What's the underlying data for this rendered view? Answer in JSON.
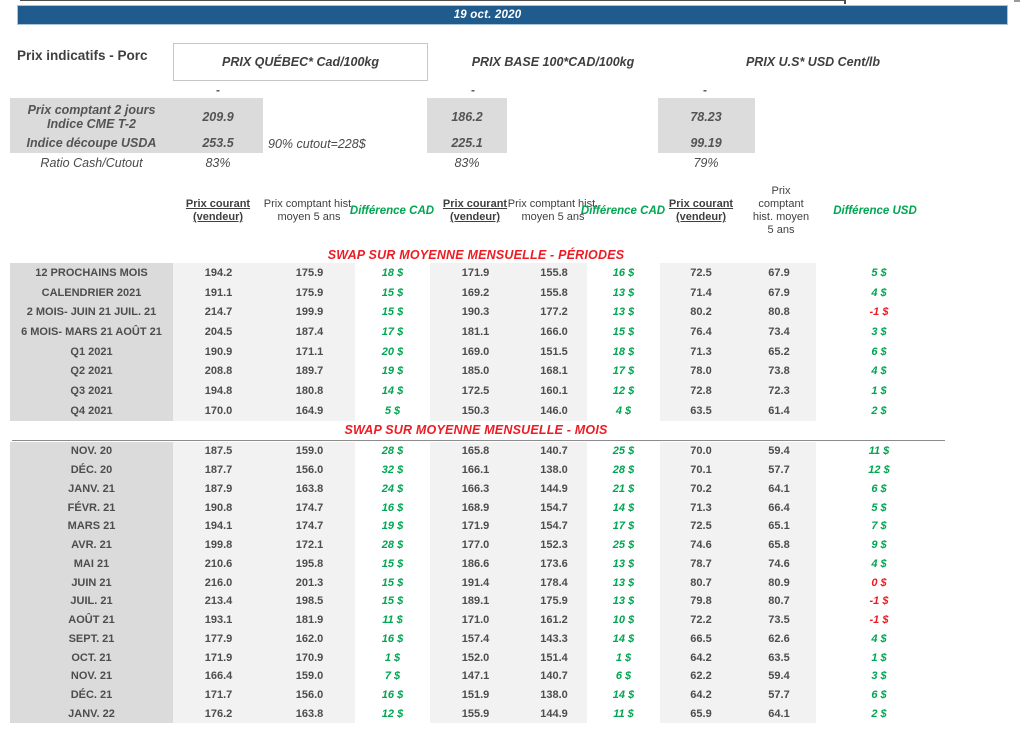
{
  "meta": {
    "date_label": "19 oct. 2020"
  },
  "page": {
    "title": "Prix indicatifs - Porc"
  },
  "groups": [
    {
      "label": "PRIX QUÉBEC* Cad/100kg"
    },
    {
      "label": "PRIX BASE 100*CAD/100kg"
    },
    {
      "label": "PRIX U.S* USD Cent/lb"
    }
  ],
  "spot": {
    "dash": "-",
    "cme": {
      "label_line1": "Prix comptant 2 jours",
      "label_line2": "Indice CME T-2",
      "quebec": "209.9",
      "base": "186.2",
      "us": "78.23"
    },
    "usda": {
      "label": "Indice découpe USDA",
      "quebec": "253.5",
      "note": "90% cutout=228$",
      "base": "225.1",
      "us": "99.19"
    },
    "ratio": {
      "label": "Ratio Cash/Cutout",
      "quebec": "83%",
      "base": "83%",
      "us": "79%"
    }
  },
  "table": {
    "headers": [
      {
        "text": "Prix courant (vendeur)",
        "kind": "courant"
      },
      {
        "text": "Prix comptant hist. moyen 5 ans",
        "kind": "hist"
      },
      {
        "text": "Différence CAD",
        "kind": "diff"
      },
      {
        "text": "Prix courant (vendeur)",
        "kind": "courant"
      },
      {
        "text": "Prix comptant hist. moyen 5 ans",
        "kind": "hist"
      },
      {
        "text": "Différence CAD",
        "kind": "diff"
      },
      {
        "text": "Prix courant (vendeur)",
        "kind": "courant"
      },
      {
        "text": "Prix comptant hist. moyen 5 ans",
        "kind": "hist"
      },
      {
        "text": "Différence USD",
        "kind": "diff"
      }
    ],
    "sections": [
      {
        "title": "SWAP SUR MOYENNE MENSUELLE - PÉRIODES",
        "rows": [
          [
            "12 PROCHAINS MOIS",
            "194.2",
            "175.9",
            "18 $",
            "171.9",
            "155.8",
            "16 $",
            "72.5",
            "67.9",
            "5 $"
          ],
          [
            "CALENDRIER 2021",
            "191.1",
            "175.9",
            "15 $",
            "169.2",
            "155.8",
            "13 $",
            "71.4",
            "67.9",
            "4 $"
          ],
          [
            "2 MOIS- JUIN 21 JUIL. 21",
            "214.7",
            "199.9",
            "15 $",
            "190.3",
            "177.2",
            "13 $",
            "80.2",
            "80.8",
            "-1 $"
          ],
          [
            "6 MOIS- MARS 21 AOÛT 21",
            "204.5",
            "187.4",
            "17 $",
            "181.1",
            "166.0",
            "15 $",
            "76.4",
            "73.4",
            "3 $"
          ],
          [
            "Q1 2021",
            "190.9",
            "171.1",
            "20 $",
            "169.0",
            "151.5",
            "18 $",
            "71.3",
            "65.2",
            "6 $"
          ],
          [
            "Q2 2021",
            "208.8",
            "189.7",
            "19 $",
            "185.0",
            "168.1",
            "17 $",
            "78.0",
            "73.8",
            "4 $"
          ],
          [
            "Q3 2021",
            "194.8",
            "180.8",
            "14 $",
            "172.5",
            "160.1",
            "12 $",
            "72.8",
            "72.3",
            "1 $"
          ],
          [
            "Q4 2021",
            "170.0",
            "164.9",
            "5 $",
            "150.3",
            "146.0",
            "4 $",
            "63.5",
            "61.4",
            "2 $"
          ]
        ]
      },
      {
        "title": "SWAP SUR MOYENNE MENSUELLE - MOIS",
        "rows": [
          [
            "NOV. 20",
            "187.5",
            "159.0",
            "28 $",
            "165.8",
            "140.7",
            "25 $",
            "70.0",
            "59.4",
            "11 $"
          ],
          [
            "DÉC. 20",
            "187.7",
            "156.0",
            "32 $",
            "166.1",
            "138.0",
            "28 $",
            "70.1",
            "57.7",
            "12 $"
          ],
          [
            "JANV. 21",
            "187.9",
            "163.8",
            "24 $",
            "166.3",
            "144.9",
            "21 $",
            "70.2",
            "64.1",
            "6 $"
          ],
          [
            "FÉVR. 21",
            "190.8",
            "174.7",
            "16 $",
            "168.9",
            "154.7",
            "14 $",
            "71.3",
            "66.4",
            "5 $"
          ],
          [
            "MARS 21",
            "194.1",
            "174.7",
            "19 $",
            "171.9",
            "154.7",
            "17 $",
            "72.5",
            "65.1",
            "7 $"
          ],
          [
            "AVR. 21",
            "199.8",
            "172.1",
            "28 $",
            "177.0",
            "152.3",
            "25 $",
            "74.6",
            "65.8",
            "9 $"
          ],
          [
            "MAI 21",
            "210.6",
            "195.8",
            "15 $",
            "186.6",
            "173.6",
            "13 $",
            "78.7",
            "74.6",
            "4 $"
          ],
          [
            "JUIN 21",
            "216.0",
            "201.3",
            "15 $",
            "191.4",
            "178.4",
            "13 $",
            "80.7",
            "80.9",
            "0 $"
          ],
          [
            "JUIL. 21",
            "213.4",
            "198.5",
            "15 $",
            "189.1",
            "175.9",
            "13 $",
            "79.8",
            "80.7",
            "-1 $"
          ],
          [
            "AOÛT 21",
            "193.1",
            "181.9",
            "11 $",
            "171.0",
            "161.2",
            "10 $",
            "72.2",
            "73.5",
            "-1 $"
          ],
          [
            "SEPT. 21",
            "177.9",
            "162.0",
            "16 $",
            "157.4",
            "143.3",
            "14 $",
            "66.5",
            "62.6",
            "4 $"
          ],
          [
            "OCT. 21",
            "171.9",
            "170.9",
            "1 $",
            "152.0",
            "151.4",
            "1 $",
            "64.2",
            "63.5",
            "1 $"
          ],
          [
            "NOV. 21",
            "166.4",
            "159.0",
            "7 $",
            "147.1",
            "140.7",
            "6 $",
            "62.2",
            "59.4",
            "3 $"
          ],
          [
            "DÉC. 21",
            "171.7",
            "156.0",
            "16 $",
            "151.9",
            "138.0",
            "14 $",
            "64.2",
            "57.7",
            "6 $"
          ],
          [
            "JANV. 22",
            "176.2",
            "163.8",
            "12 $",
            "155.9",
            "144.9",
            "11 $",
            "65.9",
            "64.1",
            "2 $"
          ]
        ]
      }
    ]
  },
  "colors": {
    "title_bar_bg": "#1F5B8C",
    "title_bar_border": "#A8C3DC",
    "positive_diff": "#00A651",
    "negative_diff": "#ED1C24",
    "section_title": "#ED1C24",
    "label_cell_bg": "#DBDBDB",
    "value_cell_bg": "#F2F2F2"
  }
}
